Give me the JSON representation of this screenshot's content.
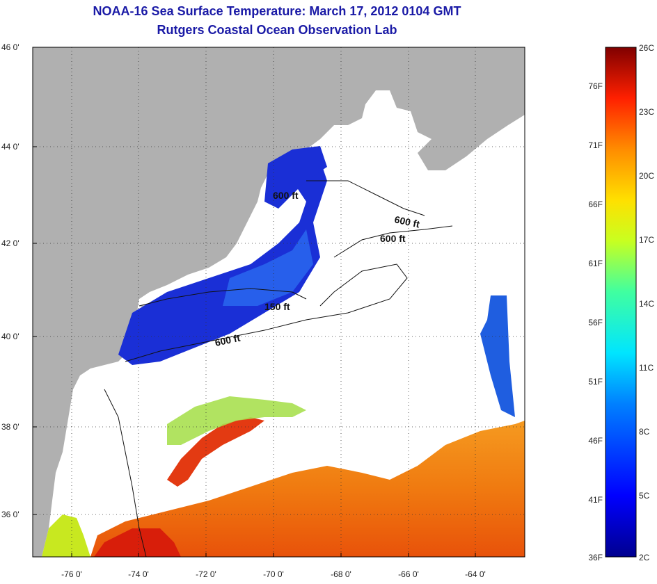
{
  "header": {
    "title": "NOAA-16 Sea Surface Temperature:  March 17, 2012 0104 GMT",
    "subtitle": "Rutgers Coastal Ocean Observation Lab"
  },
  "axes": {
    "latitude_ticks": [
      "46 0'",
      "44 0'",
      "42 0'",
      "40 0'",
      "38 0'",
      "36 0'"
    ],
    "longitude_ticks": [
      "-76 0'",
      "-74 0'",
      "-72 0'",
      "-70 0'",
      "-68 0'",
      "-66 0'",
      "-64 0'"
    ]
  },
  "depth_labels": [
    "600 ft",
    "600 ft",
    "600 ft",
    "150 ft",
    "600 ft"
  ],
  "colorbar": {
    "fahrenheit": [
      "76F",
      "71F",
      "66F",
      "61F",
      "56F",
      "51F",
      "46F",
      "41F",
      "36F"
    ],
    "celsius": [
      "26C",
      "23C",
      "20C",
      "17C",
      "14C",
      "11C",
      "8C",
      "5C",
      "2C"
    ]
  },
  "colors": {
    "land": "#b0b0b0",
    "cloud": "#ffffff",
    "title": "#1a1aa6"
  }
}
